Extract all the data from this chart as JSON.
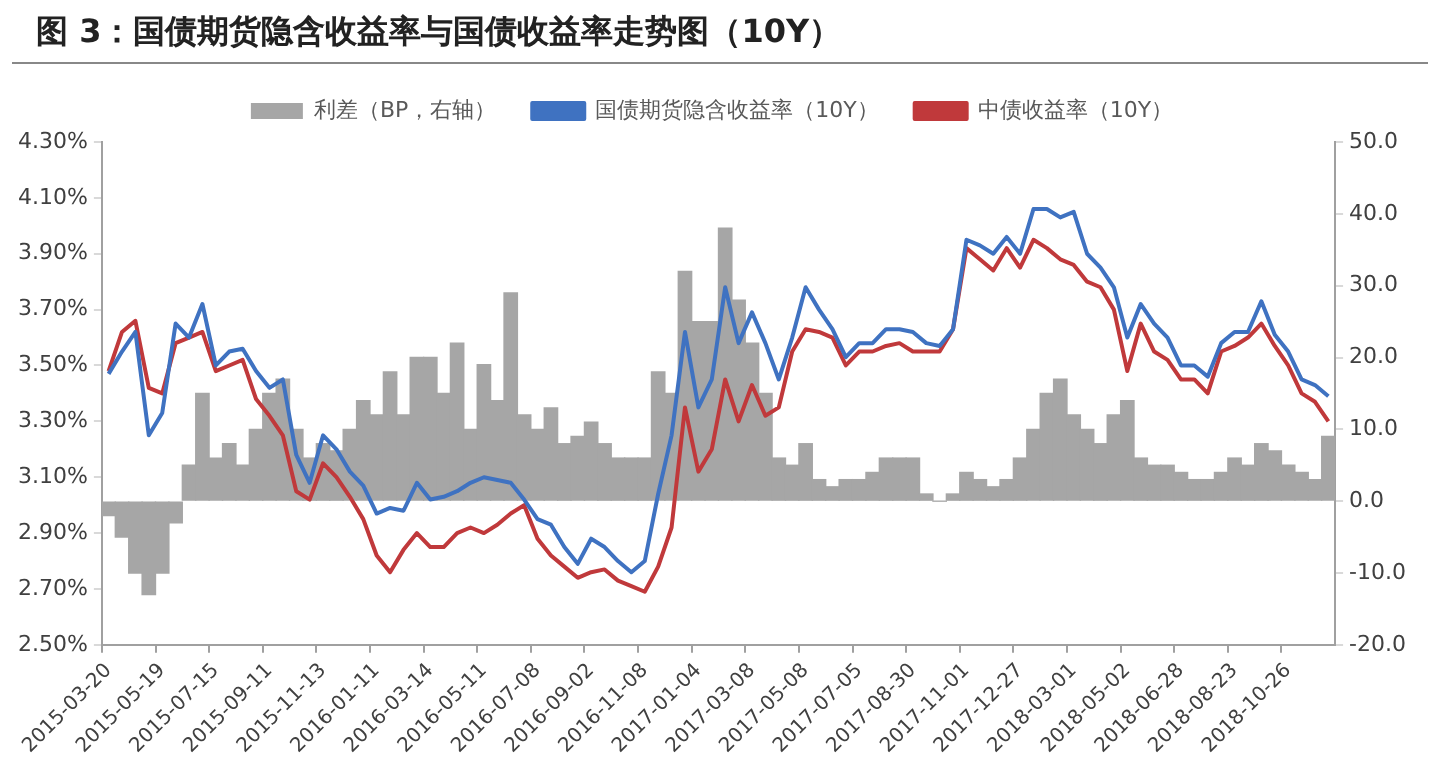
{
  "chart_data": {
    "type": "line",
    "title": "图 3：国债期货隐含收益率与国债收益率走势图（10Y）",
    "categories": [
      "2015-03-20",
      null,
      null,
      null,
      "2015-05-19",
      null,
      null,
      null,
      "2015-07-15",
      null,
      null,
      null,
      "2015-09-11",
      null,
      null,
      null,
      "2015-11-13",
      null,
      null,
      null,
      "2016-01-11",
      null,
      null,
      null,
      "2016-03-14",
      null,
      null,
      null,
      "2016-05-11",
      null,
      null,
      null,
      "2016-07-08",
      null,
      null,
      null,
      "2016-09-02",
      null,
      null,
      null,
      "2016-11-08",
      null,
      null,
      null,
      "2017-01-04",
      null,
      null,
      null,
      "2017-03-08",
      null,
      null,
      null,
      "2017-05-08",
      null,
      null,
      null,
      "2017-07-05",
      null,
      null,
      null,
      "2017-08-30",
      null,
      null,
      null,
      "2017-11-01",
      null,
      null,
      null,
      "2017-12-27",
      null,
      null,
      null,
      "2018-03-01",
      null,
      null,
      null,
      "2018-05-02",
      null,
      null,
      null,
      "2018-06-28",
      null,
      null,
      null,
      "2018-08-23",
      null,
      null,
      null,
      "2018-10-26",
      null,
      null,
      null
    ],
    "series": [
      {
        "name": "利差（BP，右轴）",
        "type": "bar",
        "axis": "y2",
        "color": "#a6a6a6",
        "values": [
          -2,
          -5,
          -10,
          -13,
          -10,
          -3,
          5,
          15,
          6,
          8,
          5,
          10,
          15,
          17,
          10,
          6,
          8,
          7,
          10,
          14,
          12,
          18,
          12,
          20,
          20,
          15,
          22,
          10,
          19,
          14,
          29,
          12,
          10,
          13,
          8,
          9,
          11,
          8,
          6,
          6,
          6,
          18,
          15,
          32,
          25,
          25,
          38,
          28,
          22,
          15,
          6,
          5,
          8,
          3,
          2,
          3,
          3,
          4,
          6,
          6,
          6,
          1,
          0,
          1,
          4,
          3,
          2,
          3,
          6,
          10,
          15,
          17,
          12,
          10,
          8,
          12,
          14,
          6,
          5,
          5,
          4,
          3,
          3,
          4,
          6,
          5,
          8,
          7,
          5,
          4,
          3,
          9
        ]
      },
      {
        "name": "国债期货隐含收益率（10Y）",
        "color": "#3f72c1",
        "values": [
          3.47,
          3.55,
          3.62,
          3.25,
          3.33,
          3.65,
          3.6,
          3.72,
          3.5,
          3.55,
          3.56,
          3.48,
          3.42,
          3.45,
          3.18,
          3.08,
          3.25,
          3.2,
          3.12,
          3.07,
          2.97,
          2.99,
          2.98,
          3.08,
          3.02,
          3.03,
          3.05,
          3.08,
          3.1,
          3.09,
          3.08,
          3.02,
          2.95,
          2.93,
          2.85,
          2.79,
          2.88,
          2.85,
          2.8,
          2.76,
          2.8,
          3.04,
          3.25,
          3.62,
          3.35,
          3.45,
          3.78,
          3.58,
          3.69,
          3.58,
          3.45,
          3.6,
          3.78,
          3.7,
          3.63,
          3.53,
          3.58,
          3.58,
          3.63,
          3.63,
          3.62,
          3.58,
          3.57,
          3.63,
          3.95,
          3.93,
          3.9,
          3.96,
          3.9,
          4.06,
          4.06,
          4.03,
          4.05,
          3.9,
          3.85,
          3.78,
          3.6,
          3.72,
          3.65,
          3.6,
          3.5,
          3.5,
          3.46,
          3.58,
          3.62,
          3.62,
          3.73,
          3.61,
          3.55,
          3.45,
          3.43,
          3.39
        ]
      },
      {
        "name": "中债收益率（10Y）",
        "color": "#c0393b",
        "values": [
          3.48,
          3.62,
          3.66,
          3.42,
          3.4,
          3.58,
          3.6,
          3.62,
          3.48,
          3.5,
          3.52,
          3.38,
          3.32,
          3.25,
          3.05,
          3.02,
          3.15,
          3.1,
          3.03,
          2.95,
          2.82,
          2.76,
          2.84,
          2.9,
          2.85,
          2.85,
          2.9,
          2.92,
          2.9,
          2.93,
          2.97,
          3.0,
          2.88,
          2.82,
          2.78,
          2.74,
          2.76,
          2.77,
          2.73,
          2.71,
          2.69,
          2.78,
          2.92,
          3.35,
          3.12,
          3.2,
          3.45,
          3.3,
          3.43,
          3.32,
          3.35,
          3.55,
          3.63,
          3.62,
          3.6,
          3.5,
          3.55,
          3.55,
          3.57,
          3.58,
          3.55,
          3.55,
          3.55,
          3.63,
          3.92,
          3.88,
          3.84,
          3.92,
          3.85,
          3.95,
          3.92,
          3.88,
          3.86,
          3.8,
          3.78,
          3.7,
          3.48,
          3.65,
          3.55,
          3.52,
          3.45,
          3.45,
          3.4,
          3.55,
          3.57,
          3.6,
          3.65,
          3.57,
          3.5,
          3.4,
          3.37,
          3.3
        ]
      }
    ],
    "ylim": [
      2.5,
      4.3
    ],
    "yticks": [
      {
        "value": 2.5,
        "label": "2.50%"
      },
      {
        "value": 2.7,
        "label": "2.70%"
      },
      {
        "value": 2.9,
        "label": "2.90%"
      },
      {
        "value": 3.1,
        "label": "3.10%"
      },
      {
        "value": 3.3,
        "label": "3.30%"
      },
      {
        "value": 3.5,
        "label": "3.50%"
      },
      {
        "value": 3.7,
        "label": "3.70%"
      },
      {
        "value": 3.9,
        "label": "3.90%"
      },
      {
        "value": 4.1,
        "label": "4.10%"
      },
      {
        "value": 4.3,
        "label": "4.30%"
      }
    ],
    "y2lim": [
      -20,
      50
    ],
    "y2ticks": [
      {
        "value": -20,
        "label": "-20.0"
      },
      {
        "value": -10,
        "label": "-10.0"
      },
      {
        "value": 0,
        "label": "0.0"
      },
      {
        "value": 10,
        "label": "10.0"
      },
      {
        "value": 20,
        "label": "20.0"
      },
      {
        "value": 30,
        "label": "30.0"
      },
      {
        "value": 40,
        "label": "40.0"
      },
      {
        "value": 50,
        "label": "50.0"
      }
    ],
    "legend": "top",
    "grid": false,
    "marker": "none",
    "line_style": "solid"
  }
}
